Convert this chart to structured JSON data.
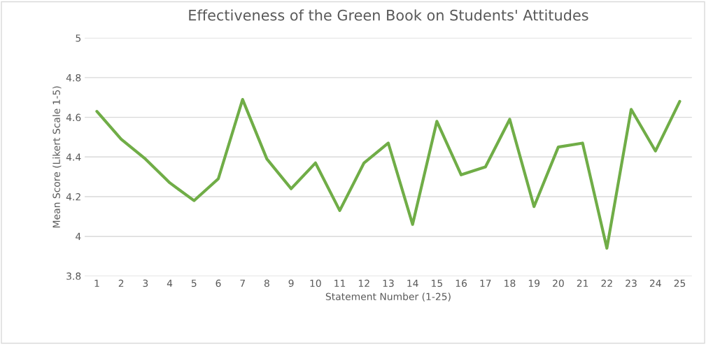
{
  "chart_data": {
    "type": "line",
    "title": "Effectiveness of the Green Book on Students' Attitudes",
    "xlabel": "Statement Number (1-25)",
    "ylabel": "Mean Score (Likert Scale 1-5)",
    "categories": [
      "1",
      "2",
      "3",
      "4",
      "5",
      "6",
      "7",
      "8",
      "9",
      "10",
      "11",
      "12",
      "13",
      "14",
      "15",
      "16",
      "17",
      "18",
      "19",
      "20",
      "21",
      "22",
      "23",
      "24",
      "25"
    ],
    "series": [
      {
        "color": "#70ad47",
        "values": [
          4.63,
          4.49,
          4.39,
          4.27,
          4.18,
          4.29,
          4.69,
          4.39,
          4.24,
          4.37,
          4.13,
          4.37,
          4.47,
          4.06,
          4.58,
          4.31,
          4.35,
          4.59,
          4.15,
          4.45,
          4.47,
          3.94,
          4.64,
          4.43,
          4.68
        ]
      }
    ],
    "ylim": [
      3.8,
      5
    ],
    "yticks": [
      3.8,
      4,
      4.2,
      4.4,
      4.6,
      4.8,
      5
    ],
    "grid": "y",
    "marker": "none",
    "line_style": "solid"
  }
}
